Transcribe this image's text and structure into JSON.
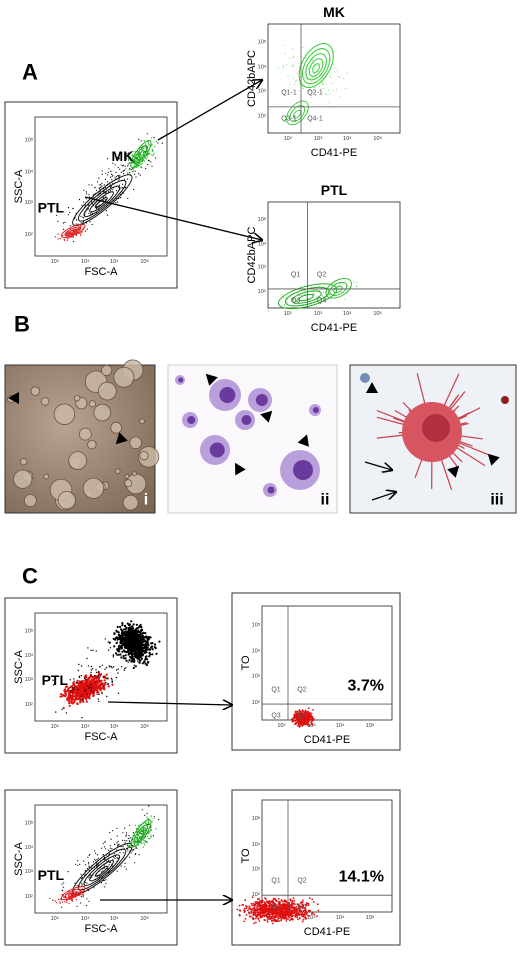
{
  "panels": {
    "A": {
      "label": "A",
      "gate_plot": {
        "y_label": "SSC-A",
        "x_label": "FSC-A",
        "gates": [
          "PTL",
          "MK"
        ]
      },
      "mk_plot": {
        "title": "MK",
        "y_label": "CD42bAPC",
        "x_label": "CD41-PE",
        "quadrants": [
          "Q1-1",
          "Q2-1",
          "Q3-1",
          "Q4-1"
        ]
      },
      "ptl_plot": {
        "title": "PTL",
        "y_label": "CD42bAPC",
        "x_label": "CD41-PE",
        "quadrants": [
          "Q1",
          "Q2",
          "Q3",
          "Q4"
        ]
      }
    },
    "B": {
      "label": "B",
      "images": [
        "i",
        "ii",
        "iii"
      ]
    },
    "C": {
      "label": "C",
      "rows": [
        {
          "gate_plot": {
            "y_label": "SSC-A",
            "x_label": "FSC-A",
            "gates": [
              "PTL"
            ]
          },
          "to_plot": {
            "y_label": "TO",
            "x_label": "CD41-PE",
            "quadrants": [
              "Q1",
              "Q2",
              "Q3",
              "Q4"
            ],
            "percent": "3.7%"
          }
        },
        {
          "gate_plot": {
            "y_label": "SSC-A",
            "x_label": "FSC-A",
            "gates": [
              "PTL"
            ]
          },
          "to_plot": {
            "y_label": "TO",
            "x_label": "CD41-PE",
            "quadrants": [
              "Q1",
              "Q2",
              "Q3",
              "Q4"
            ],
            "percent": "14.1%"
          }
        }
      ]
    }
  },
  "axis_base": "10",
  "tick_exponents": [
    "2",
    "3",
    "4",
    "5"
  ]
}
